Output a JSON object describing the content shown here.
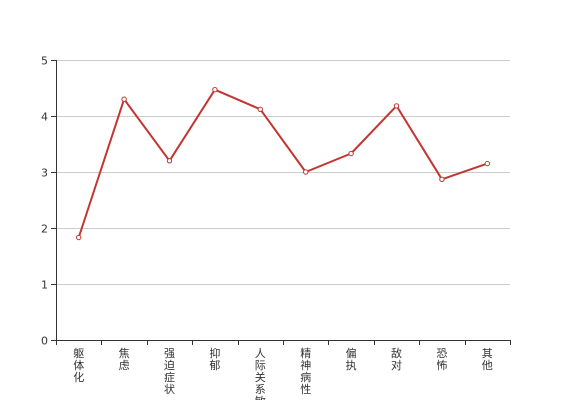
{
  "chart_data": {
    "type": "line",
    "categories": [
      "躯体化",
      "焦虑",
      "强迫症状",
      "抑郁",
      "人际关系敏感",
      "精神病性",
      "偏执",
      "敌对",
      "恐怖",
      "其他"
    ],
    "series": [
      {
        "values": [
          1.83,
          4.3,
          3.2,
          4.47,
          4.12,
          3.0,
          3.33,
          4.18,
          2.87,
          3.15
        ],
        "color": "#c23531"
      }
    ],
    "ylim": [
      0,
      5
    ],
    "yticks": [
      0,
      1,
      2,
      3,
      4,
      5
    ],
    "grid": true,
    "title": "",
    "xlabel": "",
    "ylabel": ""
  }
}
